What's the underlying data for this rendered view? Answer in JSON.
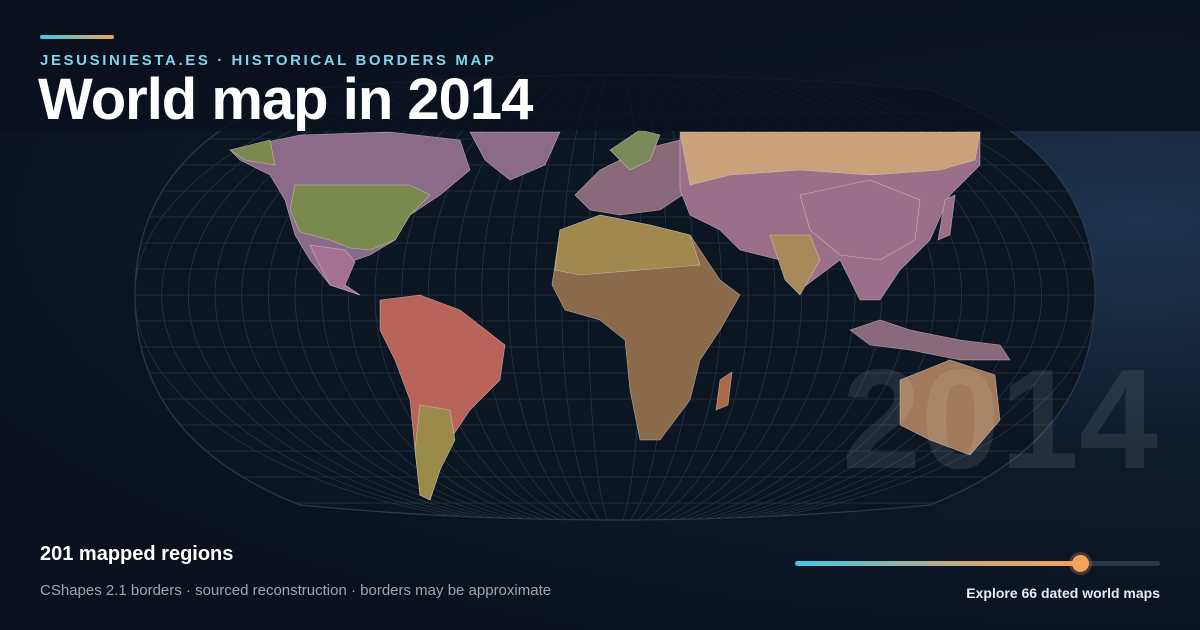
{
  "header": {
    "kicker": "JESUSINIESTA.ES · HISTORICAL BORDERS MAP",
    "title": "World map in 2014"
  },
  "watermark": "2014",
  "footer": {
    "regions": "201 mapped regions",
    "note": "CShapes 2.1 borders · sourced reconstruction · borders may be approximate",
    "cta": "Explore 66 dated world maps"
  }
}
